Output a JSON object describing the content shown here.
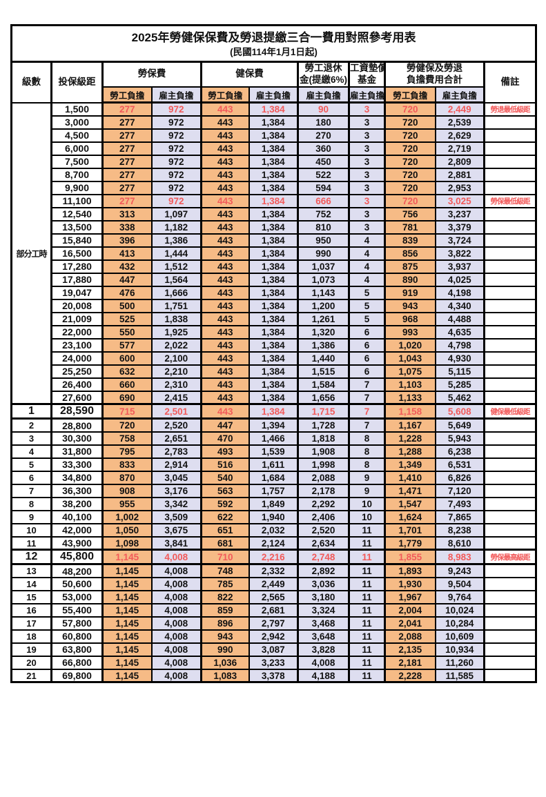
{
  "title": {
    "line1": "2025年勞健保保費及勞退提繳三合一費用對照參考用表",
    "line2": "(民國114年1月1日起)"
  },
  "header": {
    "level": "級數",
    "bracket": "投保級距",
    "labor_group": "勞保費",
    "health_group": "健保費",
    "pension_line1": "勞工退休",
    "pension_line2": "金(提繳6%)",
    "wage_fund_line1": "工資墊償",
    "wage_fund_line2": "基金",
    "total_line1": "勞健保及勞退",
    "total_line2": "負擔費用合計",
    "remark": "備註",
    "employee": "勞工負擔",
    "employer": "雇主負擔"
  },
  "part_time_label": "部分工時",
  "colors": {
    "employee_bg": "#F6BB86",
    "employer_bg": "#DEDEF0",
    "highlight_text": "#F25A5A",
    "border": "#000000"
  },
  "rows": [
    {
      "level": "",
      "bracket": "1,500",
      "values": [
        "277",
        "972",
        "443",
        "1,384",
        "90",
        "3",
        "720",
        "2,449"
      ],
      "remark": "勞退最低級距",
      "red": true
    },
    {
      "level": "",
      "bracket": "3,000",
      "values": [
        "277",
        "972",
        "443",
        "1,384",
        "180",
        "3",
        "720",
        "2,539"
      ],
      "remark": "",
      "red": false
    },
    {
      "level": "",
      "bracket": "4,500",
      "values": [
        "277",
        "972",
        "443",
        "1,384",
        "270",
        "3",
        "720",
        "2,629"
      ],
      "remark": "",
      "red": false
    },
    {
      "level": "",
      "bracket": "6,000",
      "values": [
        "277",
        "972",
        "443",
        "1,384",
        "360",
        "3",
        "720",
        "2,719"
      ],
      "remark": "",
      "red": false
    },
    {
      "level": "",
      "bracket": "7,500",
      "values": [
        "277",
        "972",
        "443",
        "1,384",
        "450",
        "3",
        "720",
        "2,809"
      ],
      "remark": "",
      "red": false
    },
    {
      "level": "",
      "bracket": "8,700",
      "values": [
        "277",
        "972",
        "443",
        "1,384",
        "522",
        "3",
        "720",
        "2,881"
      ],
      "remark": "",
      "red": false
    },
    {
      "level": "",
      "bracket": "9,900",
      "values": [
        "277",
        "972",
        "443",
        "1,384",
        "594",
        "3",
        "720",
        "2,953"
      ],
      "remark": "",
      "red": false
    },
    {
      "level": "",
      "bracket": "11,100",
      "values": [
        "277",
        "972",
        "443",
        "1,384",
        "666",
        "3",
        "720",
        "3,025"
      ],
      "remark": "勞保最低級距",
      "red": true
    },
    {
      "level": "",
      "bracket": "12,540",
      "values": [
        "313",
        "1,097",
        "443",
        "1,384",
        "752",
        "3",
        "756",
        "3,237"
      ],
      "remark": "",
      "red": false
    },
    {
      "level": "",
      "bracket": "13,500",
      "values": [
        "338",
        "1,182",
        "443",
        "1,384",
        "810",
        "3",
        "781",
        "3,379"
      ],
      "remark": "",
      "red": false
    },
    {
      "level": "",
      "bracket": "15,840",
      "values": [
        "396",
        "1,386",
        "443",
        "1,384",
        "950",
        "4",
        "839",
        "3,724"
      ],
      "remark": "",
      "red": false
    },
    {
      "level": "",
      "bracket": "16,500",
      "values": [
        "413",
        "1,444",
        "443",
        "1,384",
        "990",
        "4",
        "856",
        "3,822"
      ],
      "remark": "",
      "red": false
    },
    {
      "level": "",
      "bracket": "17,280",
      "values": [
        "432",
        "1,512",
        "443",
        "1,384",
        "1,037",
        "4",
        "875",
        "3,937"
      ],
      "remark": "",
      "red": false
    },
    {
      "level": "",
      "bracket": "17,880",
      "values": [
        "447",
        "1,564",
        "443",
        "1,384",
        "1,073",
        "4",
        "890",
        "4,025"
      ],
      "remark": "",
      "red": false
    },
    {
      "level": "",
      "bracket": "19,047",
      "values": [
        "476",
        "1,666",
        "443",
        "1,384",
        "1,143",
        "5",
        "919",
        "4,198"
      ],
      "remark": "",
      "red": false
    },
    {
      "level": "",
      "bracket": "20,008",
      "values": [
        "500",
        "1,751",
        "443",
        "1,384",
        "1,200",
        "5",
        "943",
        "4,340"
      ],
      "remark": "",
      "red": false
    },
    {
      "level": "",
      "bracket": "21,009",
      "values": [
        "525",
        "1,838",
        "443",
        "1,384",
        "1,261",
        "5",
        "968",
        "4,488"
      ],
      "remark": "",
      "red": false
    },
    {
      "level": "",
      "bracket": "22,000",
      "values": [
        "550",
        "1,925",
        "443",
        "1,384",
        "1,320",
        "6",
        "993",
        "4,635"
      ],
      "remark": "",
      "red": false
    },
    {
      "level": "",
      "bracket": "23,100",
      "values": [
        "577",
        "2,022",
        "443",
        "1,384",
        "1,386",
        "6",
        "1,020",
        "4,798"
      ],
      "remark": "",
      "red": false
    },
    {
      "level": "",
      "bracket": "24,000",
      "values": [
        "600",
        "2,100",
        "443",
        "1,384",
        "1,440",
        "6",
        "1,043",
        "4,930"
      ],
      "remark": "",
      "red": false
    },
    {
      "level": "",
      "bracket": "25,250",
      "values": [
        "632",
        "2,210",
        "443",
        "1,384",
        "1,515",
        "6",
        "1,075",
        "5,115"
      ],
      "remark": "",
      "red": false
    },
    {
      "level": "",
      "bracket": "26,400",
      "values": [
        "660",
        "2,310",
        "443",
        "1,384",
        "1,584",
        "7",
        "1,103",
        "5,285"
      ],
      "remark": "",
      "red": false
    },
    {
      "level": "",
      "bracket": "27,600",
      "values": [
        "690",
        "2,415",
        "443",
        "1,384",
        "1,656",
        "7",
        "1,133",
        "5,462"
      ],
      "remark": "",
      "red": false
    },
    {
      "level": "1",
      "bracket": "28,590",
      "values": [
        "715",
        "2,501",
        "443",
        "1,384",
        "1,715",
        "7",
        "1,158",
        "5,608"
      ],
      "remark": "健保最低級距",
      "red": true
    },
    {
      "level": "2",
      "bracket": "28,800",
      "values": [
        "720",
        "2,520",
        "447",
        "1,394",
        "1,728",
        "7",
        "1,167",
        "5,649"
      ],
      "remark": "",
      "red": false
    },
    {
      "level": "3",
      "bracket": "30,300",
      "values": [
        "758",
        "2,651",
        "470",
        "1,466",
        "1,818",
        "8",
        "1,228",
        "5,943"
      ],
      "remark": "",
      "red": false
    },
    {
      "level": "4",
      "bracket": "31,800",
      "values": [
        "795",
        "2,783",
        "493",
        "1,539",
        "1,908",
        "8",
        "1,288",
        "6,238"
      ],
      "remark": "",
      "red": false
    },
    {
      "level": "5",
      "bracket": "33,300",
      "values": [
        "833",
        "2,914",
        "516",
        "1,611",
        "1,998",
        "8",
        "1,349",
        "6,531"
      ],
      "remark": "",
      "red": false
    },
    {
      "level": "6",
      "bracket": "34,800",
      "values": [
        "870",
        "3,045",
        "540",
        "1,684",
        "2,088",
        "9",
        "1,410",
        "6,826"
      ],
      "remark": "",
      "red": false
    },
    {
      "level": "7",
      "bracket": "36,300",
      "values": [
        "908",
        "3,176",
        "563",
        "1,757",
        "2,178",
        "9",
        "1,471",
        "7,120"
      ],
      "remark": "",
      "red": false
    },
    {
      "level": "8",
      "bracket": "38,200",
      "values": [
        "955",
        "3,342",
        "592",
        "1,849",
        "2,292",
        "10",
        "1,547",
        "7,493"
      ],
      "remark": "",
      "red": false
    },
    {
      "level": "9",
      "bracket": "40,100",
      "values": [
        "1,002",
        "3,509",
        "622",
        "1,940",
        "2,406",
        "10",
        "1,624",
        "7,865"
      ],
      "remark": "",
      "red": false
    },
    {
      "level": "10",
      "bracket": "42,000",
      "values": [
        "1,050",
        "3,675",
        "651",
        "2,032",
        "2,520",
        "11",
        "1,701",
        "8,238"
      ],
      "remark": "",
      "red": false
    },
    {
      "level": "11",
      "bracket": "43,900",
      "values": [
        "1,098",
        "3,841",
        "681",
        "2,124",
        "2,634",
        "11",
        "1,779",
        "8,610"
      ],
      "remark": "",
      "red": false
    },
    {
      "level": "12",
      "bracket": "45,800",
      "values": [
        "1,145",
        "4,008",
        "710",
        "2,216",
        "2,748",
        "11",
        "1,855",
        "8,983"
      ],
      "remark": "勞保最高級距",
      "red": true
    },
    {
      "level": "13",
      "bracket": "48,200",
      "values": [
        "1,145",
        "4,008",
        "748",
        "2,332",
        "2,892",
        "11",
        "1,893",
        "9,243"
      ],
      "remark": "",
      "red": false
    },
    {
      "level": "14",
      "bracket": "50,600",
      "values": [
        "1,145",
        "4,008",
        "785",
        "2,449",
        "3,036",
        "11",
        "1,930",
        "9,504"
      ],
      "remark": "",
      "red": false
    },
    {
      "level": "15",
      "bracket": "53,000",
      "values": [
        "1,145",
        "4,008",
        "822",
        "2,565",
        "3,180",
        "11",
        "1,967",
        "9,764"
      ],
      "remark": "",
      "red": false
    },
    {
      "level": "16",
      "bracket": "55,400",
      "values": [
        "1,145",
        "4,008",
        "859",
        "2,681",
        "3,324",
        "11",
        "2,004",
        "10,024"
      ],
      "remark": "",
      "red": false
    },
    {
      "level": "17",
      "bracket": "57,800",
      "values": [
        "1,145",
        "4,008",
        "896",
        "2,797",
        "3,468",
        "11",
        "2,041",
        "10,284"
      ],
      "remark": "",
      "red": false
    },
    {
      "level": "18",
      "bracket": "60,800",
      "values": [
        "1,145",
        "4,008",
        "943",
        "2,942",
        "3,648",
        "11",
        "2,088",
        "10,609"
      ],
      "remark": "",
      "red": false
    },
    {
      "level": "19",
      "bracket": "63,800",
      "values": [
        "1,145",
        "4,008",
        "990",
        "3,087",
        "3,828",
        "11",
        "2,135",
        "10,934"
      ],
      "remark": "",
      "red": false
    },
    {
      "level": "20",
      "bracket": "66,800",
      "values": [
        "1,145",
        "4,008",
        "1,036",
        "3,233",
        "4,008",
        "11",
        "2,181",
        "11,260"
      ],
      "remark": "",
      "red": false
    },
    {
      "level": "21",
      "bracket": "69,800",
      "values": [
        "1,145",
        "4,008",
        "1,083",
        "3,378",
        "4,188",
        "11",
        "2,228",
        "11,585"
      ],
      "remark": "",
      "red": false
    }
  ]
}
